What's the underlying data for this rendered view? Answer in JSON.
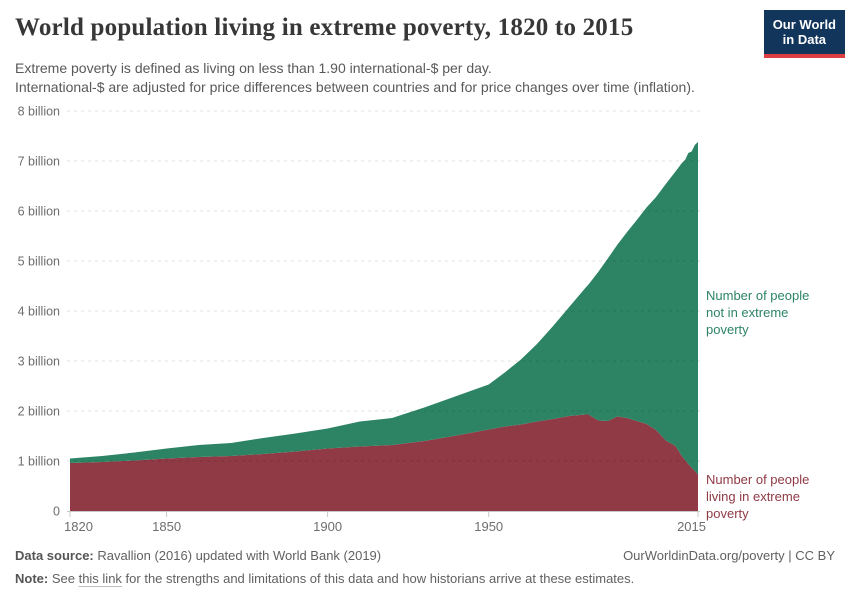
{
  "header": {
    "title": "World population living in extreme poverty, 1820 to 2015",
    "subtitle_line1": "Extreme poverty is defined as living on less than 1.90 international-$ per day.",
    "subtitle_line2": "International-$ are adjusted for price differences between countries and for price changes over time (inflation).",
    "logo": {
      "line1": "Our World",
      "line2": "in Data"
    }
  },
  "labels": {
    "not_poverty": {
      "lines": [
        "Number of people",
        "not in extreme",
        "poverty"
      ]
    },
    "poverty": {
      "lines": [
        "Number of people",
        "living in extreme",
        "poverty"
      ]
    }
  },
  "chart_data": {
    "type": "area",
    "stacked": true,
    "title": "World population living in extreme poverty, 1820 to 2015",
    "xlabel": "",
    "ylabel": "",
    "y_unit": "billion people",
    "xlim": [
      1820,
      2015
    ],
    "ylim": [
      0,
      8
    ],
    "grid": "horizontal-dashed",
    "legend_position": "right-inline-labels",
    "x_ticks": [
      1820,
      1850,
      1900,
      1950,
      2015
    ],
    "y_ticks": [
      {
        "value": 0,
        "label": "0"
      },
      {
        "value": 1,
        "label": "1 billion"
      },
      {
        "value": 2,
        "label": "2 billion"
      },
      {
        "value": 3,
        "label": "3 billion"
      },
      {
        "value": 4,
        "label": "4 billion"
      },
      {
        "value": 5,
        "label": "5 billion"
      },
      {
        "value": 6,
        "label": "6 billion"
      },
      {
        "value": 7,
        "label": "7 billion"
      },
      {
        "value": 8,
        "label": "8 billion"
      }
    ],
    "x": [
      1820,
      1830,
      1840,
      1850,
      1860,
      1870,
      1880,
      1890,
      1900,
      1910,
      1920,
      1930,
      1940,
      1950,
      1955,
      1960,
      1965,
      1970,
      1975,
      1980,
      1981,
      1984,
      1987,
      1990,
      1993,
      1996,
      1999,
      2002,
      2005,
      2008,
      2010,
      2011,
      2012,
      2013,
      2014,
      2015
    ],
    "series": [
      {
        "name": "Number of people living in extreme poverty",
        "color": "#8f3a44",
        "values": [
          0.96,
          0.98,
          1.01,
          1.05,
          1.08,
          1.1,
          1.14,
          1.19,
          1.25,
          1.29,
          1.32,
          1.4,
          1.51,
          1.63,
          1.69,
          1.73,
          1.79,
          1.84,
          1.9,
          1.93,
          1.93,
          1.81,
          1.8,
          1.89,
          1.86,
          1.8,
          1.74,
          1.62,
          1.41,
          1.3,
          1.1,
          1.02,
          0.94,
          0.87,
          0.8,
          0.73
        ]
      },
      {
        "name": "Number of people not in extreme poverty",
        "color": "#2c8465",
        "values": [
          0.09,
          0.12,
          0.16,
          0.2,
          0.24,
          0.26,
          0.32,
          0.36,
          0.4,
          0.5,
          0.54,
          0.67,
          0.79,
          0.9,
          1.08,
          1.3,
          1.55,
          1.86,
          2.18,
          2.53,
          2.6,
          2.97,
          3.25,
          3.44,
          3.72,
          4.02,
          4.33,
          4.66,
          5.13,
          5.49,
          5.86,
          6.0,
          6.22,
          6.32,
          6.52,
          6.65
        ]
      }
    ]
  },
  "footer": {
    "datasource_label": "Data source:",
    "datasource_text": " Ravallion (2016) updated with World Bank (2019)",
    "rights": "OurWorldinData.org/poverty | CC BY",
    "note_label": "Note:",
    "note_pre": " See ",
    "note_link": "this link",
    "note_post": " for the strengths and limitations of this data and how historians arrive at these estimates."
  },
  "style": {
    "accent_green": "#2c8465",
    "accent_red": "#8f3a44",
    "logo_bg": "#12355b",
    "logo_bar": "#dc3e41",
    "axis_text": "#6e6e6e",
    "baseline": "#c8c8c8"
  }
}
